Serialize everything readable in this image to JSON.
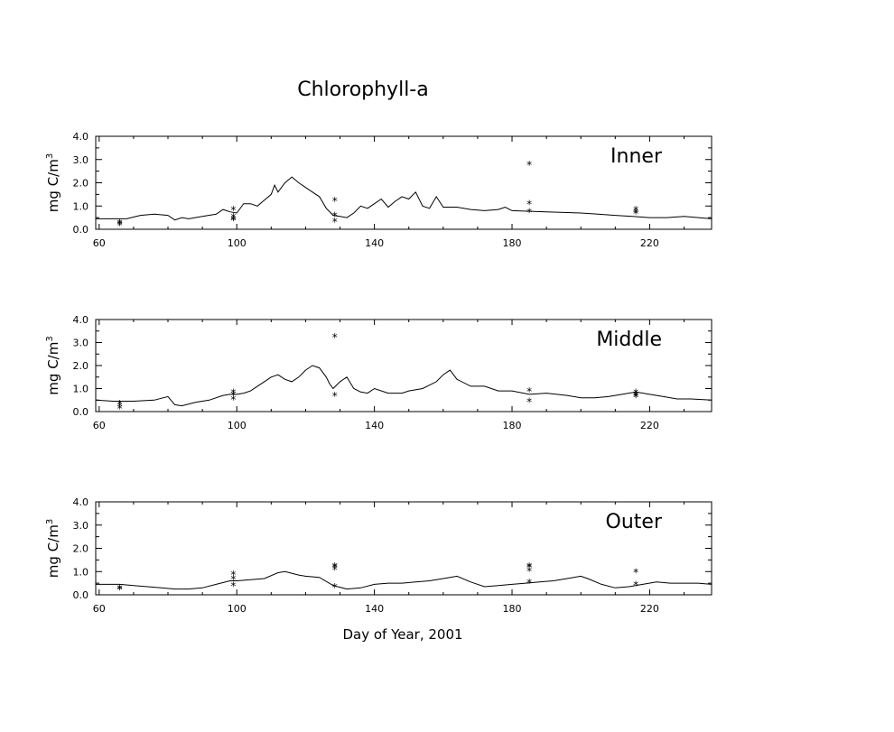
{
  "chart_data": {
    "type": "line",
    "title": "Chlorophyll-a",
    "xlabel": "Day of Year, 2001",
    "xlim": [
      59,
      238
    ],
    "ylim": [
      0.0,
      4.0
    ],
    "xticks": [
      "60",
      "100",
      "140",
      "180",
      "220"
    ],
    "yticks": [
      "0.0",
      "1.0",
      "2.0",
      "3.0",
      "4.0"
    ],
    "line_color": "#000000",
    "marker_color": "#ff0000",
    "panels": [
      {
        "label": "Inner",
        "ylabel": "mg C/m³",
        "series": [
          {
            "type": "line",
            "x": [
              59,
              65,
              68,
              72,
              76,
              80,
              82,
              84,
              86,
              90,
              94,
              96,
              98,
              100,
              102,
              104,
              106,
              108,
              110,
              111,
              112,
              114,
              116,
              118,
              120,
              122,
              124,
              126,
              128,
              130,
              132,
              134,
              136,
              138,
              140,
              142,
              144,
              146,
              148,
              150,
              152,
              154,
              156,
              158,
              160,
              164,
              168,
              172,
              176,
              178,
              180,
              190,
              200,
              205,
              210,
              215,
              220,
              225,
              230,
              238
            ],
            "y": [
              0.45,
              0.45,
              0.45,
              0.6,
              0.65,
              0.6,
              0.4,
              0.5,
              0.45,
              0.55,
              0.65,
              0.85,
              0.75,
              0.7,
              1.1,
              1.1,
              1.0,
              1.25,
              1.5,
              1.9,
              1.6,
              2.0,
              2.25,
              2.0,
              1.8,
              1.6,
              1.4,
              0.9,
              0.6,
              0.55,
              0.5,
              0.7,
              1.0,
              0.9,
              1.1,
              1.3,
              0.95,
              1.2,
              1.4,
              1.3,
              1.6,
              1.0,
              0.9,
              1.4,
              0.95,
              0.95,
              0.85,
              0.8,
              0.85,
              0.95,
              0.8,
              0.75,
              0.7,
              0.65,
              0.6,
              0.55,
              0.5,
              0.5,
              0.55,
              0.45
            ]
          },
          {
            "type": "scatter",
            "marker": "*",
            "x": [
              66,
              66,
              66,
              99,
              99,
              99,
              99,
              128.5,
              128.5,
              128.5,
              185,
              185,
              185,
              216,
              216,
              216
            ],
            "y": [
              0.25,
              0.2,
              0.3,
              0.85,
              0.55,
              0.45,
              0.4,
              1.25,
              0.6,
              0.35,
              2.8,
              1.1,
              0.75,
              0.85,
              0.75,
              0.7
            ]
          }
        ]
      },
      {
        "label": "Middle",
        "ylabel": "mg C/m³",
        "series": [
          {
            "type": "line",
            "x": [
              59,
              64,
              70,
              76,
              80,
              82,
              84,
              88,
              92,
              96,
              98,
              100,
              102,
              104,
              106,
              108,
              110,
              112,
              114,
              116,
              118,
              120,
              122,
              124,
              126,
              127,
              128,
              130,
              132,
              134,
              136,
              138,
              140,
              144,
              148,
              150,
              154,
              158,
              160,
              162,
              164,
              168,
              172,
              176,
              180,
              185,
              190,
              196,
              200,
              204,
              208,
              212,
              216,
              220,
              224,
              228,
              232,
              238
            ],
            "y": [
              0.5,
              0.45,
              0.45,
              0.5,
              0.65,
              0.3,
              0.25,
              0.4,
              0.5,
              0.7,
              0.75,
              0.75,
              0.8,
              0.9,
              1.1,
              1.3,
              1.5,
              1.6,
              1.4,
              1.3,
              1.5,
              1.8,
              2.0,
              1.9,
              1.5,
              1.2,
              1.0,
              1.3,
              1.5,
              1.0,
              0.85,
              0.8,
              1.0,
              0.8,
              0.8,
              0.9,
              1.0,
              1.3,
              1.6,
              1.8,
              1.4,
              1.1,
              1.1,
              0.9,
              0.9,
              0.75,
              0.8,
              0.7,
              0.6,
              0.6,
              0.65,
              0.75,
              0.85,
              0.75,
              0.65,
              0.55,
              0.55,
              0.5
            ]
          },
          {
            "type": "scatter",
            "marker": "*",
            "x": [
              66,
              66,
              66,
              99,
              99,
              99,
              128.5,
              128.5,
              185,
              185,
              216,
              216,
              216,
              216
            ],
            "y": [
              0.35,
              0.25,
              0.15,
              0.85,
              0.75,
              0.55,
              3.25,
              0.7,
              0.9,
              0.45,
              0.85,
              0.75,
              0.7,
              0.65
            ]
          }
        ]
      },
      {
        "label": "Outer",
        "ylabel": "mg C/m³",
        "series": [
          {
            "type": "line",
            "x": [
              59,
              66,
              70,
              74,
              78,
              82,
              86,
              90,
              94,
              98,
              100,
              104,
              108,
              112,
              114,
              118,
              120,
              124,
              128,
              132,
              136,
              140,
              144,
              148,
              152,
              156,
              160,
              164,
              168,
              172,
              176,
              180,
              184,
              188,
              192,
              196,
              200,
              202,
              206,
              210,
              214,
              218,
              222,
              226,
              230,
              234,
              238
            ],
            "y": [
              0.45,
              0.45,
              0.4,
              0.35,
              0.3,
              0.25,
              0.25,
              0.3,
              0.45,
              0.6,
              0.6,
              0.65,
              0.7,
              0.95,
              1.0,
              0.85,
              0.8,
              0.75,
              0.4,
              0.25,
              0.3,
              0.45,
              0.5,
              0.5,
              0.55,
              0.6,
              0.7,
              0.8,
              0.55,
              0.35,
              0.4,
              0.45,
              0.5,
              0.55,
              0.6,
              0.7,
              0.8,
              0.7,
              0.45,
              0.3,
              0.35,
              0.45,
              0.55,
              0.5,
              0.5,
              0.5,
              0.45
            ]
          },
          {
            "type": "scatter",
            "marker": "*",
            "x": [
              66,
              66,
              99,
              99,
              99,
              128.5,
              128.5,
              128.5,
              128.5,
              185,
              185,
              185,
              185,
              216,
              216
            ],
            "y": [
              0.3,
              0.25,
              0.9,
              0.7,
              0.4,
              1.25,
              1.2,
              1.1,
              0.35,
              1.25,
              1.2,
              1.05,
              0.55,
              1.0,
              0.45
            ]
          }
        ]
      }
    ]
  }
}
